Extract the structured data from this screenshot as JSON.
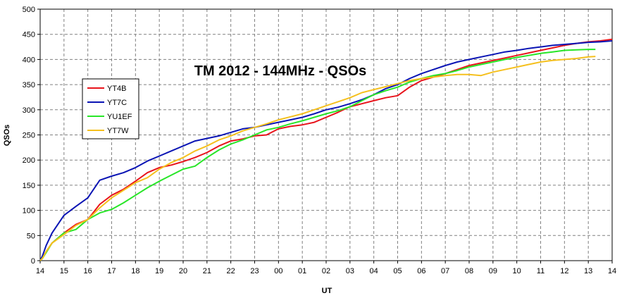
{
  "chart_data": {
    "type": "line",
    "title": "TM 2012 - 144MHz - QSOs",
    "xlabel": "UT",
    "ylabel": "QSOs",
    "ylim": [
      0,
      500
    ],
    "y_ticks": [
      "0",
      "50",
      "100",
      "150",
      "200",
      "250",
      "300",
      "350",
      "400",
      "450",
      "500"
    ],
    "x_ticks": [
      "14",
      "15",
      "16",
      "17",
      "18",
      "19",
      "20",
      "21",
      "22",
      "23",
      "00",
      "01",
      "02",
      "03",
      "04",
      "05",
      "06",
      "07",
      "08",
      "09",
      "10",
      "11",
      "12",
      "13",
      "14"
    ],
    "grid": true,
    "legend_position": "left",
    "series": [
      {
        "name": "YT4B",
        "color": "#e8141c",
        "x": [
          0,
          0.1,
          0.25,
          0.5,
          1,
          1.5,
          2,
          2.5,
          3,
          3.5,
          4,
          4.5,
          5,
          5.5,
          6,
          6.5,
          7,
          7.5,
          8,
          8.5,
          9,
          9.5,
          10,
          10.5,
          11,
          11.5,
          12,
          12.5,
          13,
          13.5,
          14,
          14.5,
          15,
          15.5,
          16,
          16.5,
          17,
          17.5,
          18,
          18.5,
          19,
          19.5,
          20,
          20.5,
          21,
          21.5,
          22,
          22.5,
          23,
          23.5,
          24
        ],
        "values": [
          0,
          5,
          18,
          35,
          55,
          72,
          82,
          112,
          130,
          142,
          158,
          175,
          185,
          190,
          197,
          205,
          215,
          228,
          238,
          242,
          248,
          250,
          262,
          267,
          270,
          275,
          285,
          295,
          306,
          312,
          318,
          324,
          328,
          345,
          358,
          365,
          372,
          380,
          388,
          393,
          398,
          403,
          408,
          413,
          418,
          423,
          428,
          432,
          435,
          437,
          440
        ]
      },
      {
        "name": "YT7C",
        "color": "#0a14b4",
        "x": [
          0,
          0.1,
          0.25,
          0.5,
          1,
          1.5,
          2,
          2.5,
          3,
          3.5,
          4,
          4.5,
          5,
          5.5,
          6,
          6.5,
          7,
          7.5,
          8,
          8.5,
          9,
          9.5,
          10,
          10.5,
          11,
          11.5,
          12,
          12.5,
          13,
          13.5,
          14,
          14.5,
          15,
          15.5,
          16,
          16.5,
          17,
          17.5,
          18,
          18.5,
          19,
          19.5,
          20,
          20.5,
          21,
          21.5,
          22,
          22.5,
          23,
          23.5,
          24
        ],
        "values": [
          0,
          10,
          30,
          55,
          90,
          108,
          125,
          160,
          168,
          175,
          185,
          198,
          208,
          218,
          228,
          238,
          243,
          248,
          255,
          262,
          265,
          270,
          275,
          280,
          285,
          292,
          300,
          305,
          312,
          320,
          330,
          342,
          350,
          362,
          372,
          380,
          388,
          395,
          400,
          405,
          410,
          415,
          418,
          422,
          425,
          428,
          430,
          432,
          434,
          435,
          437
        ]
      },
      {
        "name": "YU1EF",
        "color": "#28e628",
        "x": [
          0,
          0.1,
          0.25,
          0.5,
          1,
          1.5,
          2,
          2.5,
          3,
          3.5,
          4,
          4.5,
          5,
          5.5,
          6,
          6.5,
          7,
          7.5,
          8,
          8.5,
          9,
          9.5,
          10,
          10.5,
          11,
          11.5,
          12,
          12.5,
          13,
          13.5,
          14,
          14.5,
          15,
          15.5,
          16,
          16.5,
          17,
          17.5,
          18,
          18.5,
          19,
          19.5,
          20,
          20.5,
          21,
          21.5,
          22,
          22.5,
          23,
          23.3
        ],
        "values": [
          0,
          5,
          16,
          35,
          55,
          62,
          82,
          95,
          102,
          115,
          130,
          145,
          158,
          170,
          182,
          188,
          205,
          220,
          232,
          240,
          250,
          260,
          265,
          272,
          278,
          285,
          292,
          298,
          306,
          318,
          330,
          338,
          345,
          355,
          362,
          368,
          372,
          378,
          385,
          390,
          395,
          400,
          404,
          408,
          412,
          415,
          418,
          419,
          420,
          420
        ]
      },
      {
        "name": "YT7W",
        "color": "#f5c01e",
        "x": [
          0,
          0.1,
          0.25,
          0.5,
          1,
          1.5,
          2,
          2.5,
          3,
          3.5,
          4,
          4.5,
          5,
          5.5,
          6,
          6.5,
          7,
          7.5,
          8,
          8.5,
          9,
          9.5,
          10,
          10.5,
          11,
          11.5,
          12,
          12.5,
          13,
          13.5,
          14,
          14.5,
          15,
          15.5,
          16,
          16.5,
          17,
          17.5,
          18,
          18.5,
          19,
          19.5,
          20,
          20.5,
          21,
          21.5,
          22,
          22.5,
          23,
          23.3
        ],
        "values": [
          0,
          5,
          18,
          35,
          52,
          70,
          82,
          105,
          125,
          140,
          155,
          165,
          182,
          195,
          205,
          218,
          228,
          240,
          248,
          258,
          265,
          272,
          280,
          286,
          292,
          300,
          308,
          316,
          324,
          334,
          340,
          346,
          352,
          358,
          362,
          365,
          368,
          370,
          370,
          368,
          375,
          380,
          385,
          390,
          395,
          398,
          400,
          402,
          405,
          406
        ]
      }
    ]
  }
}
